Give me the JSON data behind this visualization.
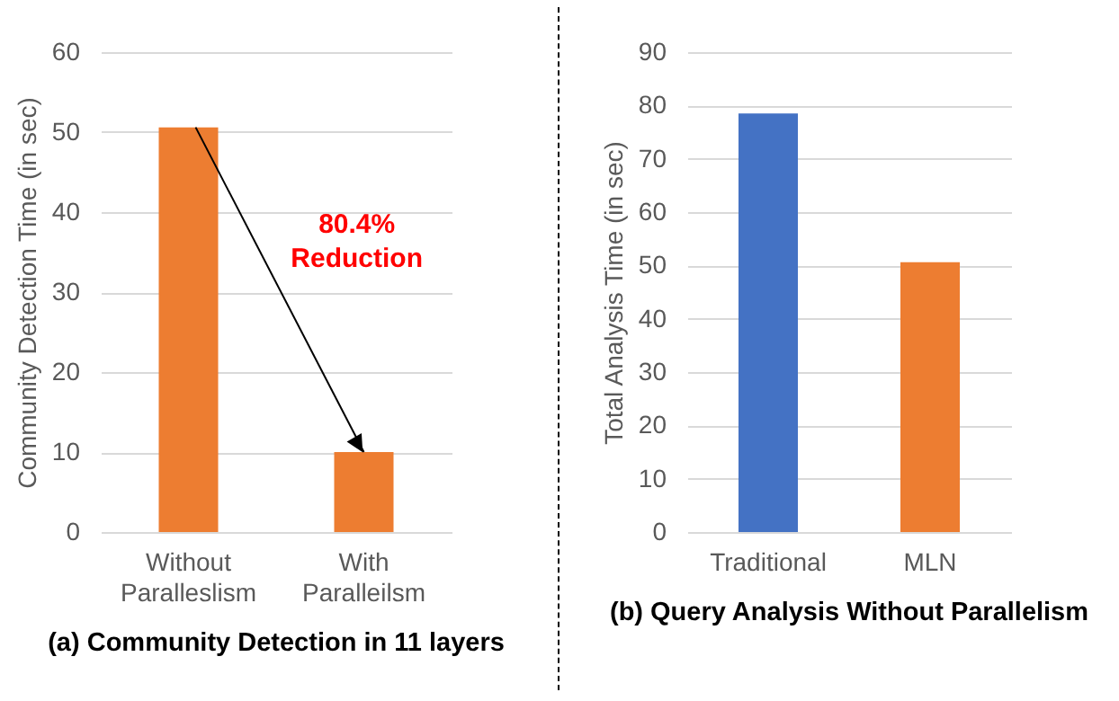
{
  "chart_data": [
    {
      "type": "bar",
      "title": "(a) Community Detection in 11 layers",
      "ylabel": "Community Detection Time (in sec)",
      "categories": [
        "Without Paralleslism",
        "With Paralleilsm"
      ],
      "values": [
        50.6,
        10.0
      ],
      "colors": [
        "#ed7d31",
        "#ed7d31"
      ],
      "ylim": [
        0,
        60
      ],
      "yticks": [
        0,
        10,
        20,
        30,
        40,
        50,
        60
      ],
      "grid": "y",
      "annotations": [
        "80.4% Reduction"
      ]
    },
    {
      "type": "bar",
      "title": "(b) Query Analysis Without Parallelism",
      "ylabel": "Total Analysis Time (in sec)",
      "categories": [
        "Traditional",
        "MLN"
      ],
      "values": [
        78.5,
        50.6
      ],
      "colors": [
        "#4472c4",
        "#ed7d31"
      ],
      "ylim": [
        0,
        90
      ],
      "yticks": [
        0,
        10,
        20,
        30,
        40,
        50,
        60,
        70,
        80,
        90
      ],
      "grid": "y"
    }
  ]
}
